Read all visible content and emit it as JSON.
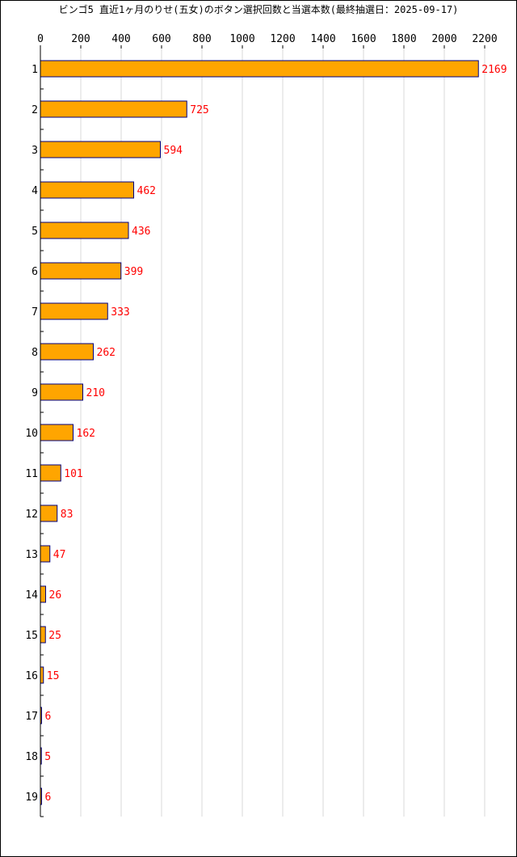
{
  "chart_data": {
    "type": "bar",
    "orientation": "horizontal",
    "title": "ビンゴ5 直近1ヶ月のりせ(五女)のボタン選択回数と当選本数(最終抽選日：2025-09-17)",
    "categories": [
      "1",
      "2",
      "3",
      "4",
      "5",
      "6",
      "7",
      "8",
      "9",
      "10",
      "11",
      "12",
      "13",
      "14",
      "15",
      "16",
      "17",
      "18",
      "19"
    ],
    "values": [
      2169,
      725,
      594,
      462,
      436,
      399,
      333,
      262,
      210,
      162,
      101,
      83,
      47,
      26,
      25,
      15,
      6,
      5,
      6
    ],
    "xlim": [
      0,
      2200
    ],
    "xticks": [
      0,
      200,
      400,
      600,
      800,
      1000,
      1200,
      1400,
      1600,
      1800,
      2000,
      2200
    ],
    "grid": true,
    "bar_color": "#ffa500",
    "bar_edge_color": "#000080",
    "label_color": "#ff0000",
    "data_labels": true
  }
}
